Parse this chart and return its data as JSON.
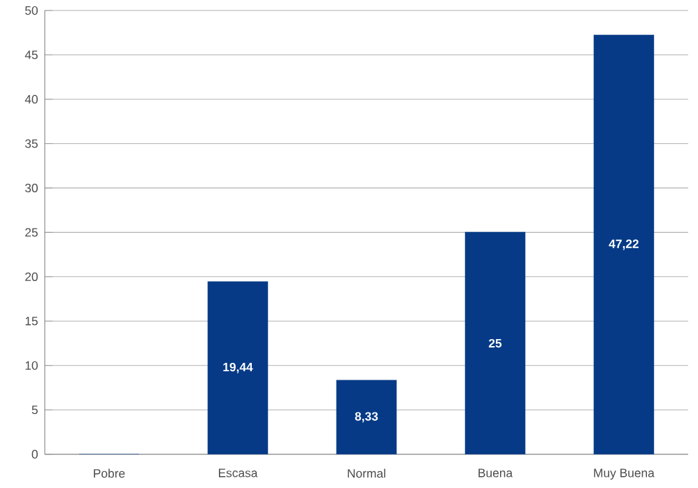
{
  "chart_data": {
    "type": "bar",
    "categories": [
      "Pobre",
      "Escasa",
      "Normal",
      "Buena",
      "Muy Buena"
    ],
    "values": [
      0,
      19.44,
      8.33,
      25,
      47.22
    ],
    "value_labels": [
      null,
      "19,44",
      "8,33",
      "25",
      "47,22"
    ],
    "color": "#063a86",
    "ylim": [
      0,
      50
    ],
    "yticks": [
      0,
      5,
      10,
      15,
      20,
      25,
      30,
      35,
      40,
      45,
      50
    ],
    "grid": "y"
  }
}
